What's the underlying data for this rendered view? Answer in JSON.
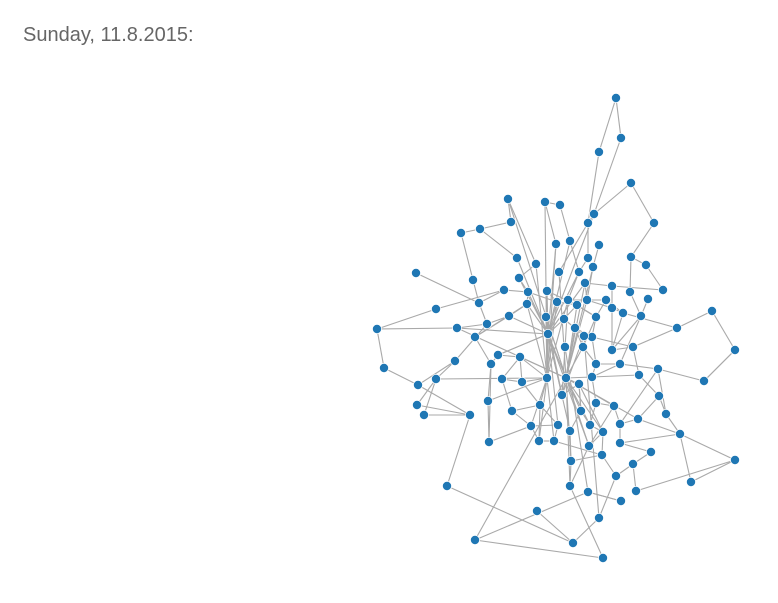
{
  "heading": "Sunday, 11.8.2015:",
  "colors": {
    "node": "#1f77b4",
    "link": "#a9a9a9",
    "heading": "#666666"
  },
  "chart_data": {
    "type": "network",
    "title": "",
    "directed": false,
    "node_count": 125,
    "hubs": [
      "n47",
      "n67",
      "n72"
    ]
  }
}
